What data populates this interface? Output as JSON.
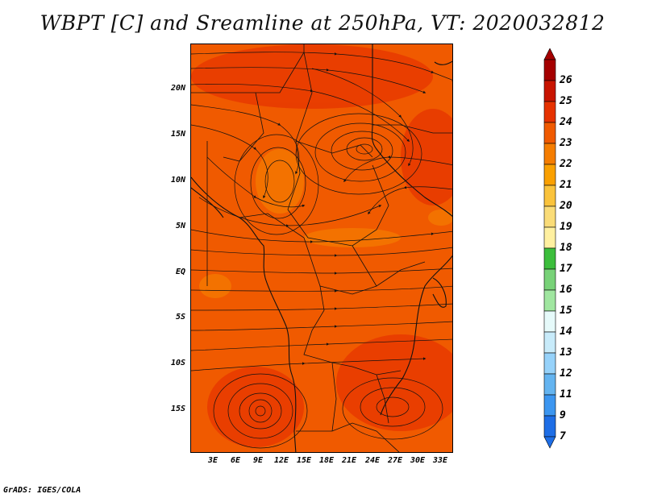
{
  "title": "WBPT [C] and Sreamline at 250hPa, VT: 2020032812",
  "credit": "GrADS: IGES/COLA",
  "lat_labels": [
    "20N",
    "15N",
    "10N",
    "5N",
    "EQ",
    "5S",
    "10S",
    "15S"
  ],
  "lon_labels": [
    "3E",
    "6E",
    "9E",
    "12E",
    "15E",
    "18E",
    "21E",
    "24E",
    "27E",
    "30E",
    "33E"
  ],
  "colorbar": {
    "labels": [
      "26",
      "25",
      "24",
      "23",
      "22",
      "21",
      "20",
      "19",
      "18",
      "17",
      "16",
      "15",
      "14",
      "13",
      "12",
      "11",
      "9",
      "7"
    ],
    "colors": [
      "#a50000",
      "#c81400",
      "#e63200",
      "#f05a00",
      "#f57d00",
      "#faa000",
      "#fac33c",
      "#fadc78",
      "#fff0a0",
      "#3cbe3c",
      "#78d278",
      "#a0e6a0",
      "#e6fafa",
      "#c8ebfa",
      "#96d2fa",
      "#64b4f0",
      "#3c96f0",
      "#1e6ee6"
    ]
  },
  "colors": {
    "field_main": "#f05a00",
    "field_warm": "#e63200",
    "field_light": "#f57d00",
    "lines": "#111111"
  }
}
